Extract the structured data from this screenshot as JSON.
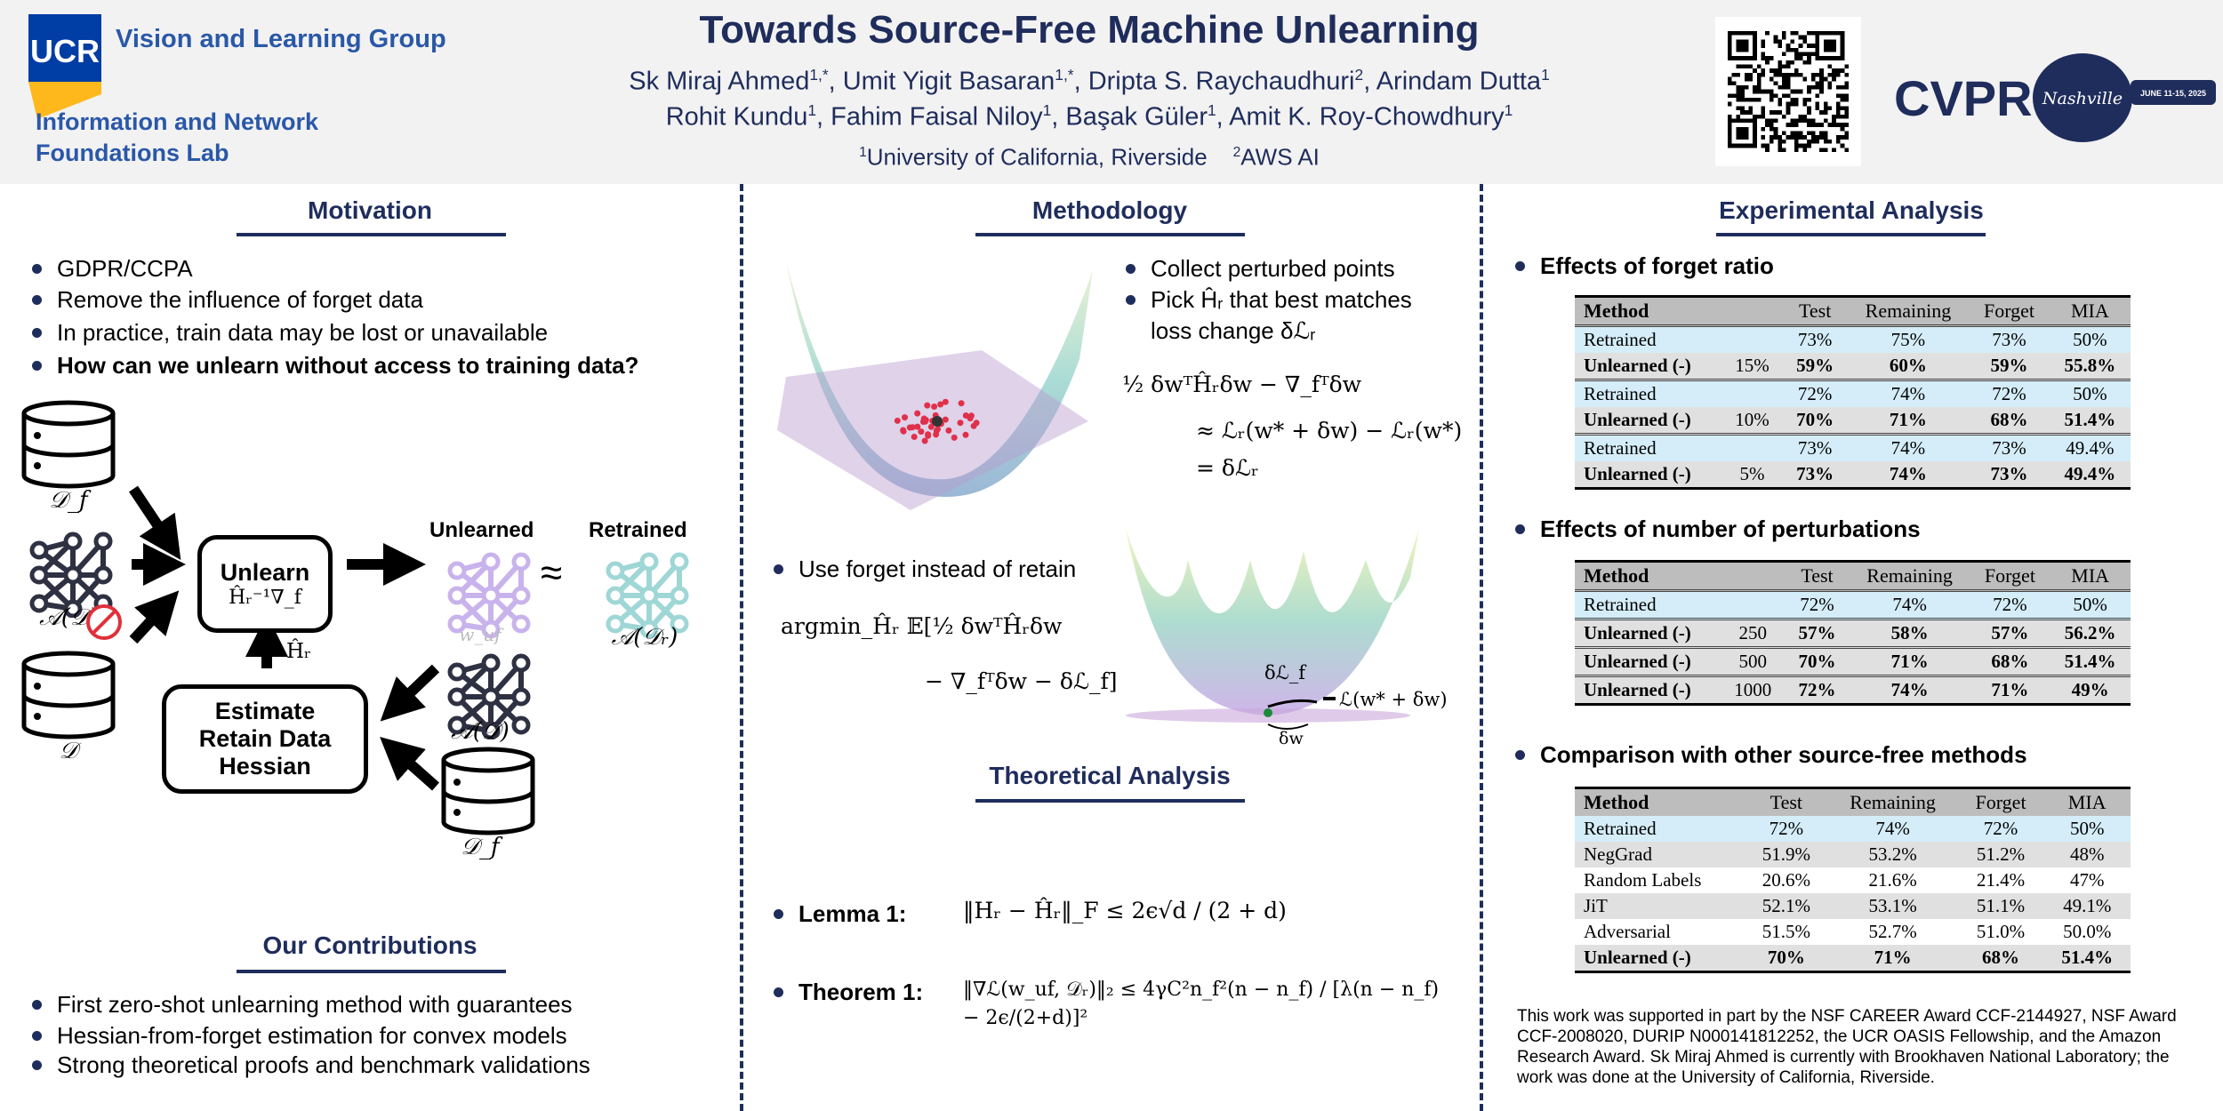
{
  "header": {
    "logo_text": "UCR",
    "group": "Vision and Learning Group",
    "lab_line1": "Information and Network",
    "lab_line2": "Foundations Lab",
    "title": "Towards Source-Free Machine Unlearning",
    "authors_line1": [
      {
        "name": "Sk Miraj Ahmed",
        "sup": "1,*"
      },
      {
        "name": "Umit Yigit Basaran",
        "sup": "1,*"
      },
      {
        "name": "Dripta S. Raychaudhuri",
        "sup": "2"
      },
      {
        "name": "Arindam Dutta",
        "sup": "1"
      }
    ],
    "authors_line2": [
      {
        "name": "Rohit Kundu",
        "sup": "1"
      },
      {
        "name": "Fahim Faisal Niloy",
        "sup": "1"
      },
      {
        "name": "Başak Güler",
        "sup": "1"
      },
      {
        "name": "Amit K. Roy-Chowdhury",
        "sup": "1"
      }
    ],
    "affiliations": [
      {
        "sup": "1",
        "name": "University of California, Riverside"
      },
      {
        "sup": "2",
        "name": "AWS AI"
      }
    ],
    "conf_logo": "CVPR",
    "conf_city": "Nashville",
    "conf_dates": "JUNE 11-15, 2025"
  },
  "colors": {
    "navy": "#1f2d5c",
    "ucr_blue": "#003da5",
    "ucr_gold": "#ffb81c",
    "retrained_row": "#d4edf9",
    "row_grey": "#e0e0e0",
    "unlearned_net": "#c9b3ec",
    "retrained_net": "#9fd6d6"
  },
  "motivation": {
    "title": "Motivation",
    "bullets": [
      "GDPR/CCPA",
      "Remove the influence of forget data",
      "In practice, train data may be lost or unavailable",
      "How can we unlearn without access to training data?"
    ],
    "diagram": {
      "df_top": "𝒟_f",
      "model": "𝒜(𝒟)",
      "d": "𝒟",
      "unlearn_title": "Unlearn",
      "unlearn_formula": "Ĥᵣ⁻¹∇_f",
      "h_label": "Ĥᵣ",
      "estimate": "Estimate Retain Data Hessian",
      "unlearned": "Unlearned",
      "retrained": "Retrained",
      "wuf": "w_uf",
      "approx": "≈",
      "retrained_model": "𝒜(𝒟ᵣ)",
      "model2": "𝒜(𝒟)",
      "df_bottom": "𝒟_f",
      "no_access_icon": "prohibited-icon"
    }
  },
  "contributions": {
    "title": "Our Contributions",
    "bullets": [
      "First zero-shot unlearning method with guarantees",
      "Hessian-from-forget estimation for convex models",
      "Strong theoretical proofs and benchmark validations"
    ]
  },
  "methodology": {
    "title": "Methodology",
    "bullets": [
      "Collect perturbed points",
      "Pick Ĥᵣ that best matches",
      "loss change δℒᵣ"
    ],
    "eq1": [
      "½ δwᵀĤᵣδw − ∇_fᵀδw",
      "≈ ℒᵣ(w* + δw) − ℒᵣ(w*)",
      "= δℒᵣ"
    ],
    "bullet2": "Use forget instead of retain",
    "eq2": [
      "argmin_Ĥᵣ 𝔼[½ δwᵀĤᵣδw",
      "− ∇_fᵀδw − δℒ_f]"
    ],
    "plot2": {
      "delta_lf": "δℒ_f",
      "loss_label": "ℒ(w* + δw)",
      "delta_w": "δw"
    }
  },
  "theory": {
    "title": "Theoretical Analysis",
    "lemma_label": "Lemma 1:",
    "lemma": "‖Hᵣ − Ĥᵣ‖_F ≤ 2ϵ√d / (2 + d)",
    "theorem_label": "Theorem 1:",
    "theorem": "‖∇ℒ(w_uf, 𝒟ᵣ)‖₂ ≤ 4γC²n_f²(n − n_f) / [λ(n − n_f) − 2ϵ/(2+d)]²"
  },
  "experiments": {
    "title": "Experimental Analysis",
    "sub1": "Effects of forget ratio",
    "sub2": "Effects of number of perturbations",
    "sub3": "Comparison with other source-free methods",
    "columns": [
      "Method",
      "",
      "Test",
      "Remaining",
      "Forget",
      "MIA"
    ],
    "columns3": [
      "Method",
      "Test",
      "Remaining",
      "Forget",
      "MIA"
    ],
    "table1": [
      [
        {
          "method": "Retrained",
          "param": "",
          "vals": [
            "73%",
            "75%",
            "73%",
            "50%"
          ],
          "style": "blue"
        },
        {
          "method": "Unlearned (-)",
          "param": "15%",
          "vals": [
            "59%",
            "60%",
            "59%",
            "55.8%"
          ],
          "style": "grey bold"
        }
      ],
      [
        {
          "method": "Retrained",
          "param": "",
          "vals": [
            "72%",
            "74%",
            "72%",
            "50%"
          ],
          "style": "blue"
        },
        {
          "method": "Unlearned (-)",
          "param": "10%",
          "vals": [
            "70%",
            "71%",
            "68%",
            "51.4%"
          ],
          "style": "grey bold"
        }
      ],
      [
        {
          "method": "Retrained",
          "param": "",
          "vals": [
            "73%",
            "74%",
            "73%",
            "49.4%"
          ],
          "style": "blue"
        },
        {
          "method": "Unlearned (-)",
          "param": "5%",
          "vals": [
            "73%",
            "74%",
            "73%",
            "49.4%"
          ],
          "style": "grey bold"
        }
      ]
    ],
    "table2": [
      [
        {
          "method": "Retrained",
          "param": "",
          "vals": [
            "72%",
            "74%",
            "72%",
            "50%"
          ],
          "style": "blue"
        }
      ],
      [
        {
          "method": "Unlearned (-)",
          "param": "250",
          "vals": [
            "57%",
            "58%",
            "57%",
            "56.2%"
          ],
          "style": "grey bold"
        }
      ],
      [
        {
          "method": "Unlearned (-)",
          "param": "500",
          "vals": [
            "70%",
            "71%",
            "68%",
            "51.4%"
          ],
          "style": "grey bold"
        }
      ],
      [
        {
          "method": "Unlearned (-)",
          "param": "1000",
          "vals": [
            "72%",
            "74%",
            "71%",
            "49%"
          ],
          "style": "grey bold"
        }
      ]
    ],
    "table3": [
      [
        {
          "method": "Retrained",
          "vals": [
            "72%",
            "74%",
            "72%",
            "50%"
          ],
          "style": "blue"
        },
        {
          "method": "NegGrad",
          "vals": [
            "51.9%",
            "53.2%",
            "51.2%",
            "48%"
          ],
          "style": "grey"
        },
        {
          "method": "Random Labels",
          "vals": [
            "20.6%",
            "21.6%",
            "21.4%",
            "47%"
          ],
          "style": "white"
        },
        {
          "method": "JiT",
          "vals": [
            "52.1%",
            "53.1%",
            "51.1%",
            "49.1%"
          ],
          "style": "grey"
        },
        {
          "method": "Adversarial",
          "vals": [
            "51.5%",
            "52.7%",
            "51.0%",
            "50.0%"
          ],
          "style": "white"
        },
        {
          "method": "Unlearned (-)",
          "vals": [
            "70%",
            "71%",
            "68%",
            "51.4%"
          ],
          "style": "grey bold"
        }
      ]
    ],
    "footnote": "This work was supported in part by the NSF CAREER Award CCF-2144927, NSF Award CCF-2008020, DURIP N000141812252, the UCR OASIS Fellowship, and the Amazon Research Award. Sk Miraj Ahmed is currently with Brookhaven National Laboratory; the work was done at the University of California, Riverside."
  }
}
